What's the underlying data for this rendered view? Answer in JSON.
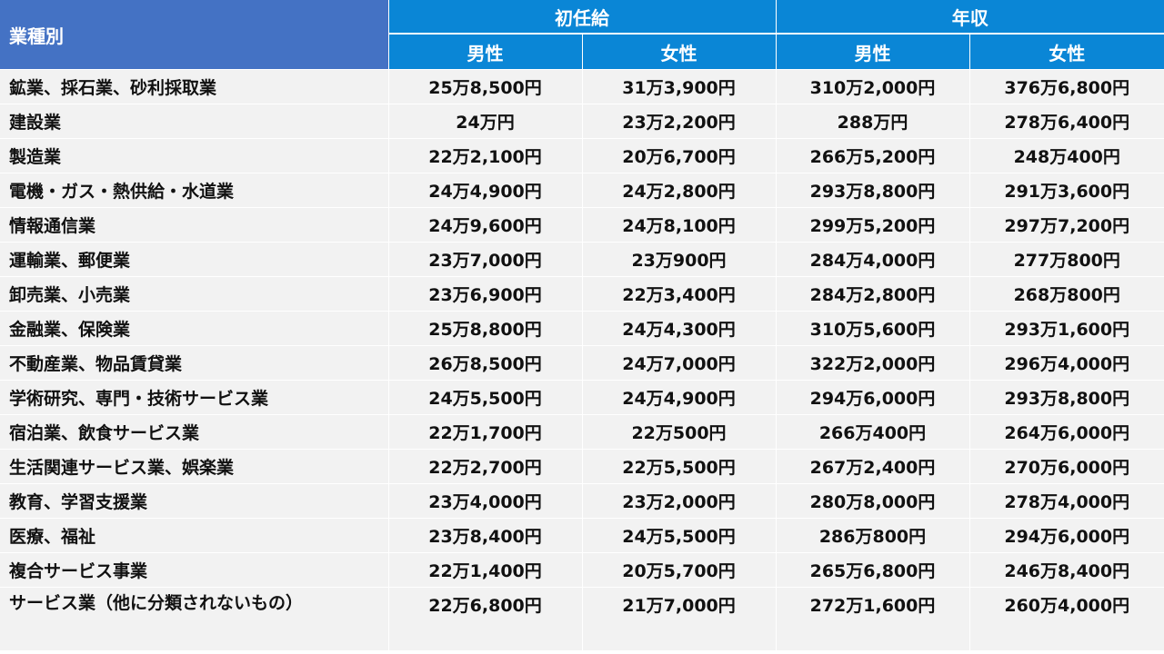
{
  "table": {
    "corner_label": "業種別",
    "group_headers": [
      "初任給",
      "年収"
    ],
    "sub_headers": [
      "男性",
      "女性",
      "男性",
      "女性"
    ],
    "rows": [
      {
        "label": "鉱業、採石業、砂利採取業",
        "values": [
          "25万8,500円",
          "31万3,900円",
          "310万2,000円",
          "376万6,800円"
        ]
      },
      {
        "label": "建設業",
        "values": [
          "24万円",
          "23万2,200円",
          "288万円",
          "278万6,400円"
        ]
      },
      {
        "label": "製造業",
        "values": [
          "22万2,100円",
          "20万6,700円",
          "266万5,200円",
          "248万400円"
        ]
      },
      {
        "label": "電機・ガス・熱供給・水道業",
        "values": [
          "24万4,900円",
          "24万2,800円",
          "293万8,800円",
          "291万3,600円"
        ]
      },
      {
        "label": "情報通信業",
        "values": [
          "24万9,600円",
          "24万8,100円",
          "299万5,200円",
          "297万7,200円"
        ]
      },
      {
        "label": "運輸業、郵便業",
        "values": [
          "23万7,000円",
          "23万900円",
          "284万4,000円",
          "277万800円"
        ]
      },
      {
        "label": "卸売業、小売業",
        "values": [
          "23万6,900円",
          "22万3,400円",
          "284万2,800円",
          "268万800円"
        ]
      },
      {
        "label": "金融業、保険業",
        "values": [
          "25万8,800円",
          "24万4,300円",
          "310万5,600円",
          "293万1,600円"
        ]
      },
      {
        "label": "不動産業、物品賃貸業",
        "values": [
          "26万8,500円",
          "24万7,000円",
          "322万2,000円",
          "296万4,000円"
        ]
      },
      {
        "label": "学術研究、専門・技術サービス業",
        "values": [
          "24万5,500円",
          "24万4,900円",
          "294万6,000円",
          "293万8,800円"
        ]
      },
      {
        "label": "宿泊業、飲食サービス業",
        "values": [
          "22万1,700円",
          "22万500円",
          "266万400円",
          "264万6,000円"
        ]
      },
      {
        "label": "生活関連サービス業、娯楽業",
        "values": [
          "22万2,700円",
          "22万5,500円",
          "267万2,400円",
          "270万6,000円"
        ]
      },
      {
        "label": "教育、学習支援業",
        "values": [
          "23万4,000円",
          "23万2,000円",
          "280万8,000円",
          "278万4,000円"
        ]
      },
      {
        "label": "医療、福祉",
        "values": [
          "23万8,400円",
          "24万5,500円",
          "286万800円",
          "294万6,000円"
        ]
      },
      {
        "label": "複合サービス事業",
        "values": [
          "22万1,400円",
          "20万5,700円",
          "265万6,800円",
          "246万8,400円"
        ]
      },
      {
        "label": "サービス業（他に分類されないもの）",
        "values": [
          "22万6,800円",
          "21万7,000円",
          "272万1,600円",
          "260万4,000円"
        ]
      }
    ]
  }
}
